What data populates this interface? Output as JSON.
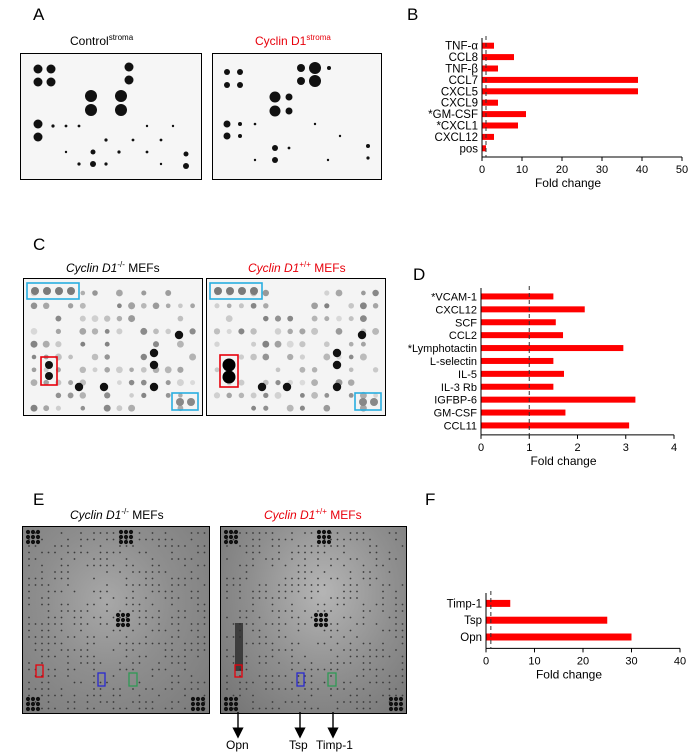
{
  "panels": {
    "A": {
      "letter": "A",
      "left_title": {
        "main": "Control",
        "sup": "stroma"
      },
      "right_title": {
        "main": "Cyclin D1",
        "sup": "stroma"
      }
    },
    "B": {
      "letter": "B"
    },
    "C": {
      "letter": "C",
      "left_title": {
        "gene": "Cyclin D1",
        "sup": "-/-",
        "suffix": " MEFs"
      },
      "right_title": {
        "gene": "Cyclin D1",
        "sup": "+/+",
        "suffix": " MEFs"
      }
    },
    "D": {
      "letter": "D"
    },
    "E": {
      "letter": "E",
      "left_title": {
        "gene": "Cyclin D1",
        "sup": "-/-",
        "suffix": " MEFs"
      },
      "right_title": {
        "gene": "Cyclin D1",
        "sup": "+/+",
        "suffix": " MEFs"
      },
      "arrow_labels": [
        "Opn",
        "Tsp",
        "Timp-1"
      ]
    },
    "F": {
      "letter": "F"
    }
  },
  "colors": {
    "bar": "#ff0000",
    "red_text": "#e8000b",
    "cyan_box": "#29aee0",
    "red_box": "#e8000b",
    "blue_box": "#2a2ad0",
    "green_box": "#2f9a55"
  },
  "chart_data": [
    {
      "id": "B",
      "type": "bar",
      "orientation": "horizontal",
      "categories": [
        "TNF-α",
        "CCL8",
        "TNF-β",
        "CCL7",
        "CXCL5",
        "CXCL9",
        "*GM-CSF",
        "*CXCL1",
        "CXCL12",
        "pos"
      ],
      "values": [
        3,
        8,
        4,
        39,
        39,
        4,
        11,
        9,
        3,
        1
      ],
      "xlabel": "Fold change",
      "xlim": [
        0,
        50
      ],
      "xticks": [
        0,
        10,
        20,
        30,
        40,
        50
      ],
      "reference_line": 1
    },
    {
      "id": "D",
      "type": "bar",
      "orientation": "horizontal",
      "categories": [
        "*VCAM-1",
        "CXCL12",
        "SCF",
        "CCL2",
        "*Lymphotactin",
        "L-selectin",
        "IL-5",
        "IL-3 Rb",
        "IGFBP-6",
        "GM-CSF",
        "CCL11"
      ],
      "values": [
        1.5,
        2.15,
        1.55,
        1.7,
        2.95,
        1.5,
        1.72,
        1.5,
        3.2,
        1.75,
        3.07
      ],
      "xlabel": "Fold change",
      "xlim": [
        0,
        4
      ],
      "xticks": [
        0,
        1,
        2,
        3,
        4
      ],
      "reference_line": 1
    },
    {
      "id": "F",
      "type": "bar",
      "orientation": "horizontal",
      "categories": [
        "Timp-1",
        "Tsp",
        "Opn"
      ],
      "values": [
        5,
        25,
        30
      ],
      "xlabel": "Fold change",
      "xlim": [
        0,
        40
      ],
      "xticks": [
        0,
        10,
        20,
        30,
        40
      ],
      "reference_line": 1
    }
  ]
}
